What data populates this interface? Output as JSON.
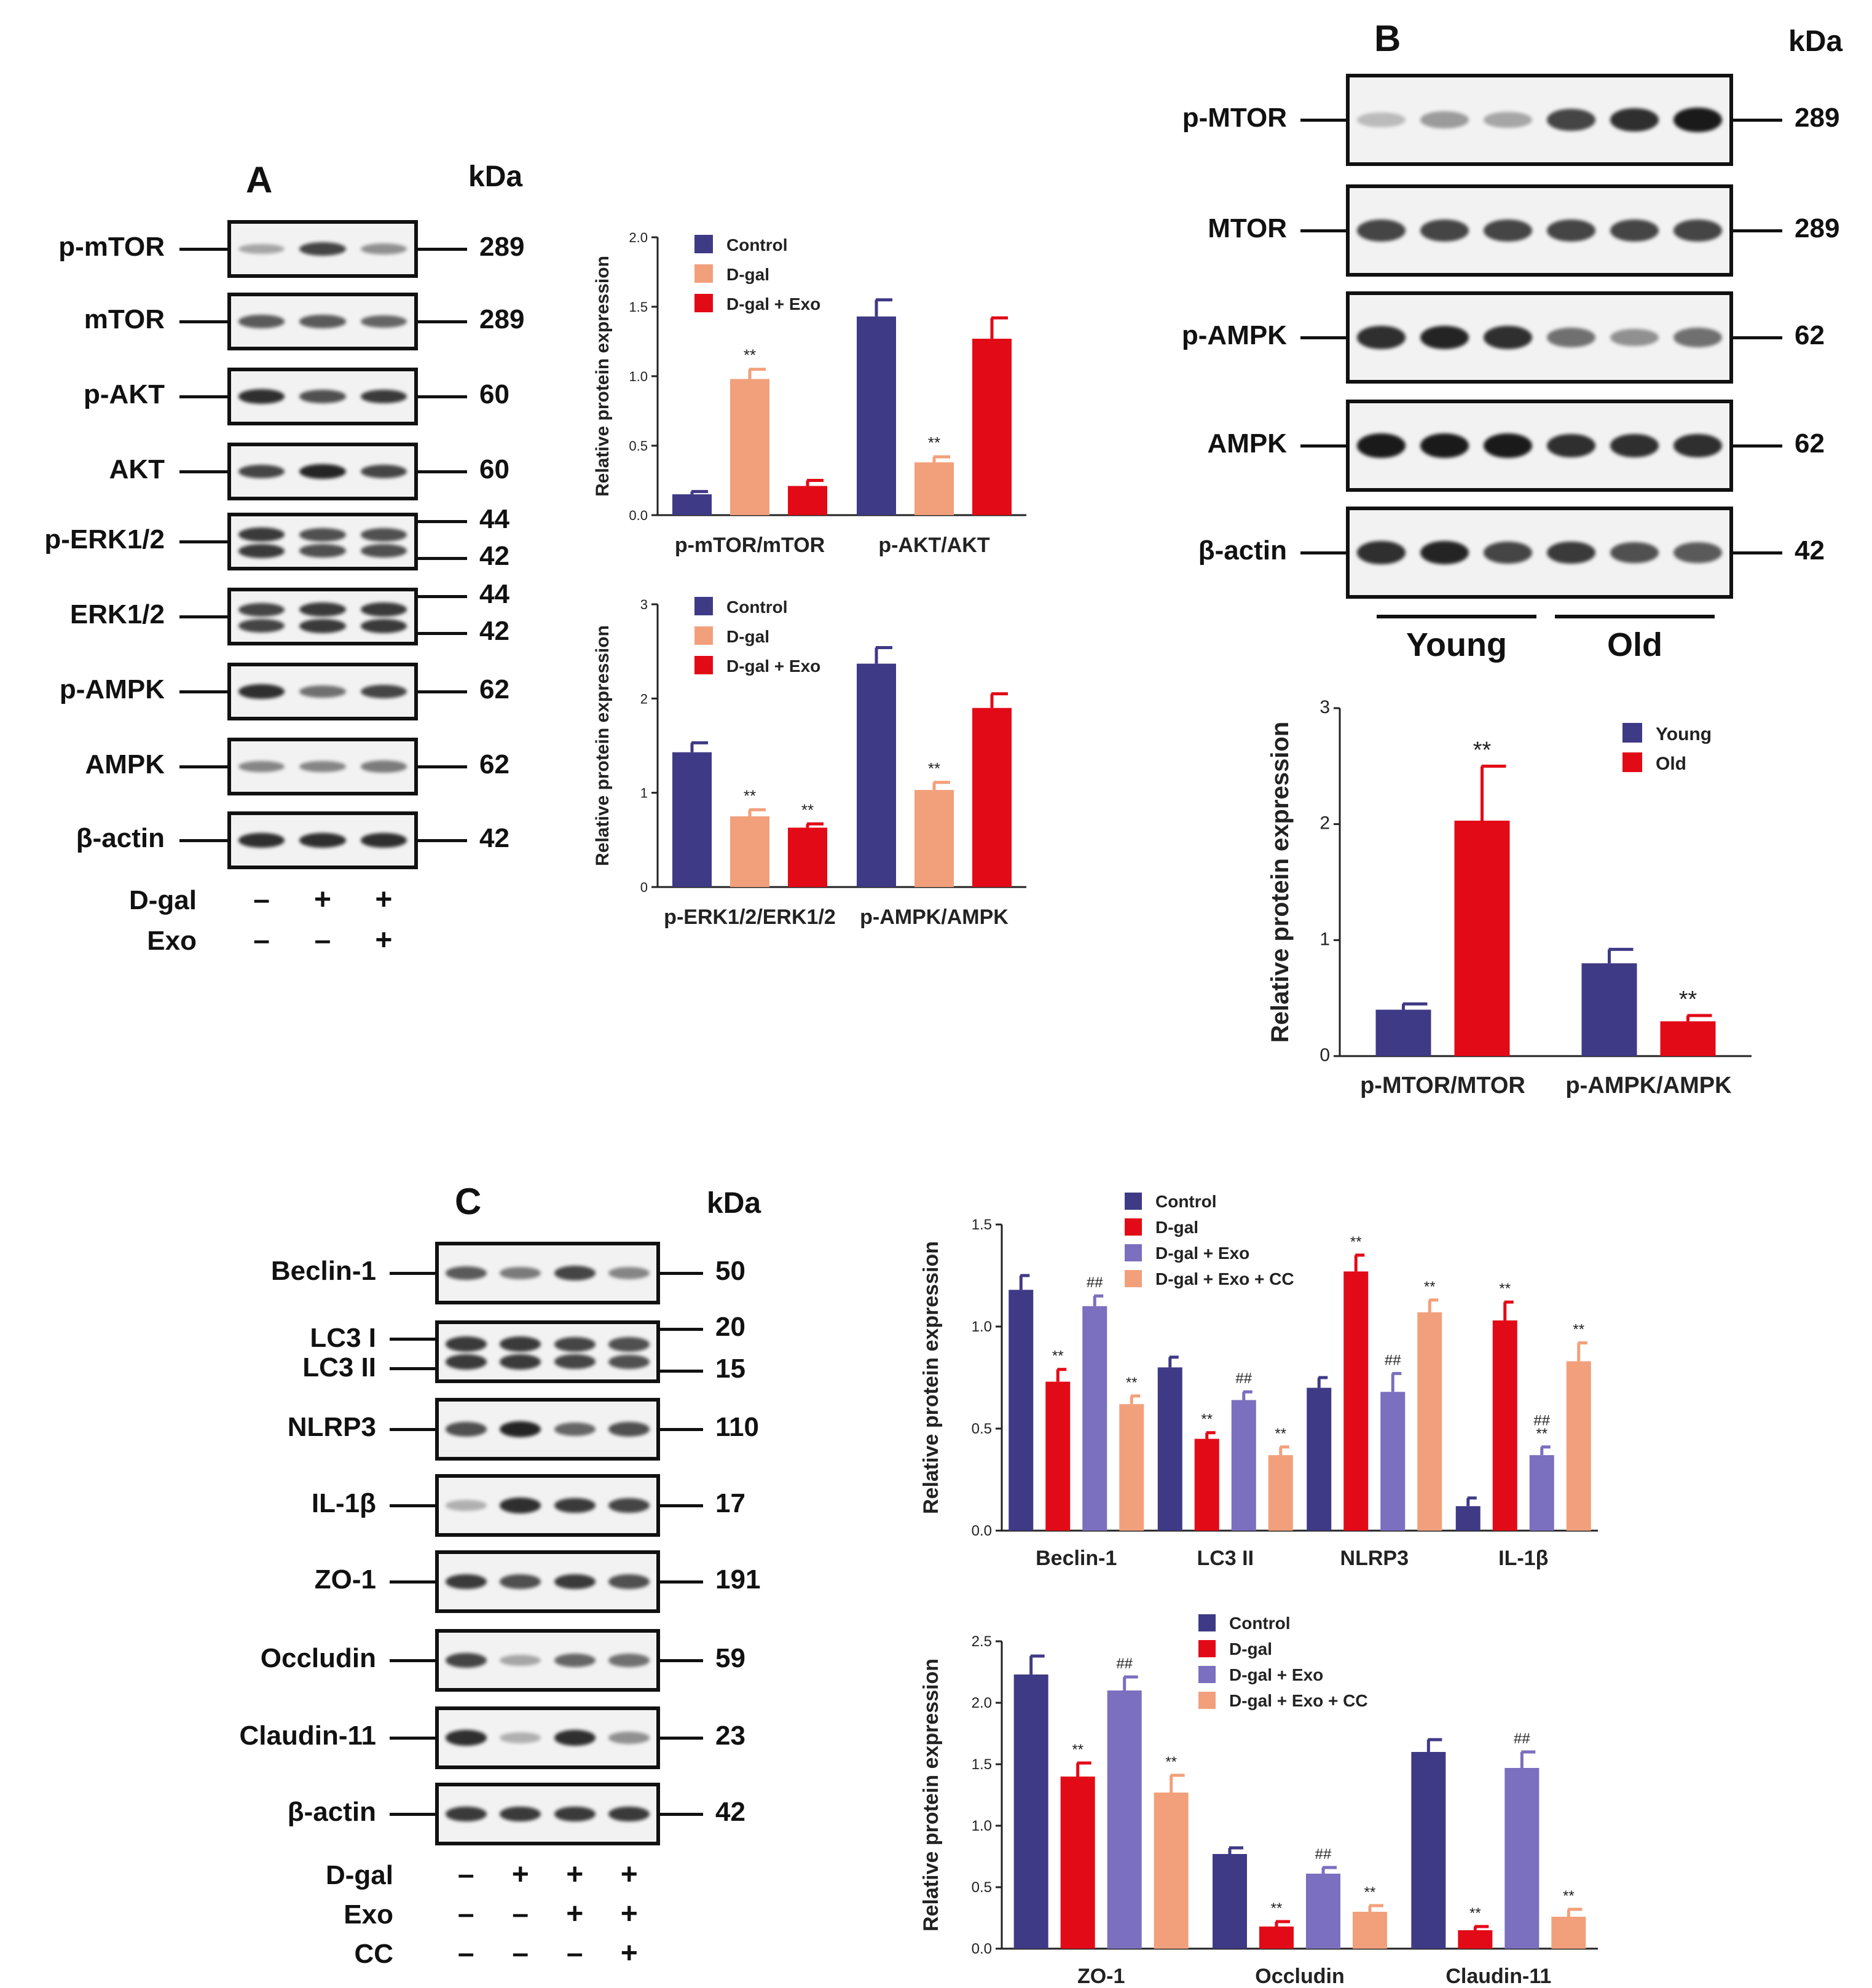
{
  "panels": {
    "A": {
      "label": "A",
      "kda": "kDa",
      "blots": [
        {
          "name": "p-mTOR",
          "mw": [
            "289"
          ]
        },
        {
          "name": "mTOR",
          "mw": [
            "289"
          ]
        },
        {
          "name": "p-AKT",
          "mw": [
            "60"
          ]
        },
        {
          "name": "AKT",
          "mw": [
            "60"
          ]
        },
        {
          "name": "p-ERK1/2",
          "mw": [
            "44",
            "42"
          ]
        },
        {
          "name": "ERK1/2",
          "mw": [
            "44",
            "42"
          ]
        },
        {
          "name": "p-AMPK",
          "mw": [
            "62"
          ]
        },
        {
          "name": "AMPK",
          "mw": [
            "62"
          ]
        },
        {
          "name": "β-actin",
          "mw": [
            "42"
          ]
        }
      ],
      "treatments": [
        {
          "name": "D-gal",
          "signs": [
            "–",
            "+",
            "+"
          ]
        },
        {
          "name": "Exo",
          "signs": [
            "–",
            "–",
            "+"
          ]
        }
      ]
    },
    "B": {
      "label": "B",
      "kda": "kDa",
      "blots": [
        {
          "name": "p-MTOR",
          "mw": [
            "289"
          ]
        },
        {
          "name": "MTOR",
          "mw": [
            "289"
          ]
        },
        {
          "name": "p-AMPK",
          "mw": [
            "62"
          ]
        },
        {
          "name": "AMPK",
          "mw": [
            "62"
          ]
        },
        {
          "name": "β-actin",
          "mw": [
            "42"
          ]
        }
      ],
      "groups": [
        "Young",
        "Old"
      ]
    },
    "C": {
      "label": "C",
      "kda": "kDa",
      "blots": [
        {
          "name": "Beclin-1",
          "mw": [
            "50"
          ]
        },
        {
          "name": "LC3 I",
          "name2": "LC3 II",
          "mw": [
            "20",
            "15"
          ]
        },
        {
          "name": "NLRP3",
          "mw": [
            "110"
          ]
        },
        {
          "name": "IL-1β",
          "mw": [
            "17"
          ]
        },
        {
          "name": "ZO-1",
          "mw": [
            "191"
          ]
        },
        {
          "name": "Occludin",
          "mw": [
            "59"
          ]
        },
        {
          "name": "Claudin-11",
          "mw": [
            "23"
          ]
        },
        {
          "name": "β-actin",
          "mw": [
            "42"
          ]
        }
      ],
      "treatments": [
        {
          "name": "D-gal",
          "signs": [
            "–",
            "+",
            "+",
            "+"
          ]
        },
        {
          "name": "Exo",
          "signs": [
            "–",
            "–",
            "+",
            "+"
          ]
        },
        {
          "name": "CC",
          "signs": [
            "–",
            "–",
            "–",
            "+"
          ]
        }
      ]
    }
  },
  "chart_data": [
    {
      "id": "A1",
      "type": "bar",
      "ylabel": "Relative protein expression",
      "ylim": [
        0,
        2.0
      ],
      "yticks": [
        "0.0",
        "0.5",
        "1.0",
        "1.5",
        "2.0"
      ],
      "categories": [
        "p-mTOR/mTOR",
        "p-AKT/AKT"
      ],
      "series": [
        {
          "name": "Control",
          "color": "#3f3a85",
          "values": [
            0.15,
            1.43
          ],
          "errors": [
            0.02,
            0.12
          ],
          "marks": [
            "",
            ""
          ]
        },
        {
          "name": "D-gal",
          "color": "#f2a07b",
          "values": [
            0.98,
            0.38
          ],
          "errors": [
            0.07,
            0.04
          ],
          "marks": [
            "**",
            "**"
          ]
        },
        {
          "name": "D-gal + Exo",
          "color": "#e30a17",
          "values": [
            0.21,
            1.27
          ],
          "errors": [
            0.04,
            0.15
          ],
          "marks": [
            "",
            ""
          ]
        }
      ]
    },
    {
      "id": "A2",
      "type": "bar",
      "ylabel": "Relative protein expression",
      "ylim": [
        0,
        3
      ],
      "yticks": [
        "0",
        "1",
        "2",
        "3"
      ],
      "categories": [
        "p-ERK1/2/ERK1/2",
        "p-AMPK/AMPK"
      ],
      "series": [
        {
          "name": "Control",
          "color": "#3f3a85",
          "values": [
            1.43,
            2.37
          ],
          "errors": [
            0.1,
            0.17
          ],
          "marks": [
            "",
            ""
          ]
        },
        {
          "name": "D-gal",
          "color": "#f2a07b",
          "values": [
            0.75,
            1.03
          ],
          "errors": [
            0.07,
            0.08
          ],
          "marks": [
            "**",
            "**"
          ]
        },
        {
          "name": "D-gal + Exo",
          "color": "#e30a17",
          "values": [
            0.63,
            1.9
          ],
          "errors": [
            0.04,
            0.15
          ],
          "marks": [
            "**",
            ""
          ]
        }
      ]
    },
    {
      "id": "B",
      "type": "bar",
      "ylabel": "Relative protein expression",
      "ylim": [
        0,
        3
      ],
      "yticks": [
        "0",
        "1",
        "2",
        "3"
      ],
      "categories": [
        "p-MTOR/MTOR",
        "p-AMPK/AMPK"
      ],
      "series": [
        {
          "name": "Young",
          "color": "#3f3a85",
          "values": [
            0.4,
            0.8
          ],
          "errors": [
            0.05,
            0.12
          ],
          "marks": [
            "",
            ""
          ]
        },
        {
          "name": "Old",
          "color": "#e30a17",
          "values": [
            2.03,
            0.3
          ],
          "errors": [
            0.47,
            0.05
          ],
          "marks": [
            "**",
            "**"
          ]
        }
      ]
    },
    {
      "id": "C1",
      "type": "bar",
      "ylabel": "Relative protein expression",
      "ylim": [
        0,
        1.5
      ],
      "yticks": [
        "0.0",
        "0.5",
        "1.0",
        "1.5"
      ],
      "categories": [
        "Beclin-1",
        "LC3 II",
        "NLRP3",
        "IL-1β"
      ],
      "series": [
        {
          "name": "Control",
          "color": "#3f3a85",
          "values": [
            1.18,
            0.8,
            0.7,
            0.12
          ],
          "errors": [
            0.07,
            0.05,
            0.05,
            0.04
          ],
          "marks": [
            "",
            "",
            "",
            ""
          ]
        },
        {
          "name": "D-gal",
          "color": "#e30a17",
          "values": [
            0.73,
            0.45,
            1.27,
            1.03
          ],
          "errors": [
            0.06,
            0.03,
            0.08,
            0.09
          ],
          "marks": [
            "**",
            "**",
            "**",
            "**"
          ]
        },
        {
          "name": "D-gal + Exo",
          "color": "#7b6fbf",
          "values": [
            1.1,
            0.64,
            0.68,
            0.37
          ],
          "errors": [
            0.05,
            0.04,
            0.09,
            0.04
          ],
          "marks": [
            "##",
            "##",
            "##",
            "##\n**"
          ]
        },
        {
          "name": "D-gal + Exo + CC",
          "color": "#f2a07b",
          "values": [
            0.62,
            0.37,
            1.07,
            0.83
          ],
          "errors": [
            0.04,
            0.04,
            0.06,
            0.09
          ],
          "marks": [
            "**",
            "**",
            "**",
            "**"
          ]
        }
      ]
    },
    {
      "id": "C2",
      "type": "bar",
      "ylabel": "Relative protein expression",
      "ylim": [
        0,
        2.5
      ],
      "yticks": [
        "0.0",
        "0.5",
        "1.0",
        "1.5",
        "2.0",
        "2.5"
      ],
      "categories": [
        "ZO-1",
        "Occludin",
        "Claudin-11"
      ],
      "series": [
        {
          "name": "Control",
          "color": "#3f3a85",
          "values": [
            2.23,
            0.77,
            1.6
          ],
          "errors": [
            0.15,
            0.05,
            0.1
          ],
          "marks": [
            "",
            "",
            ""
          ]
        },
        {
          "name": "D-gal",
          "color": "#e30a17",
          "values": [
            1.4,
            0.18,
            0.15
          ],
          "errors": [
            0.11,
            0.04,
            0.03
          ],
          "marks": [
            "**",
            "**",
            "**"
          ]
        },
        {
          "name": "D-gal + Exo",
          "color": "#7b6fbf",
          "values": [
            2.1,
            0.61,
            1.47
          ],
          "errors": [
            0.11,
            0.05,
            0.13
          ],
          "marks": [
            "##",
            "##",
            "##"
          ]
        },
        {
          "name": "D-gal + Exo + CC",
          "color": "#f2a07b",
          "values": [
            1.27,
            0.3,
            0.26
          ],
          "errors": [
            0.14,
            0.05,
            0.06
          ],
          "marks": [
            "**",
            "**",
            "**"
          ]
        }
      ]
    }
  ]
}
